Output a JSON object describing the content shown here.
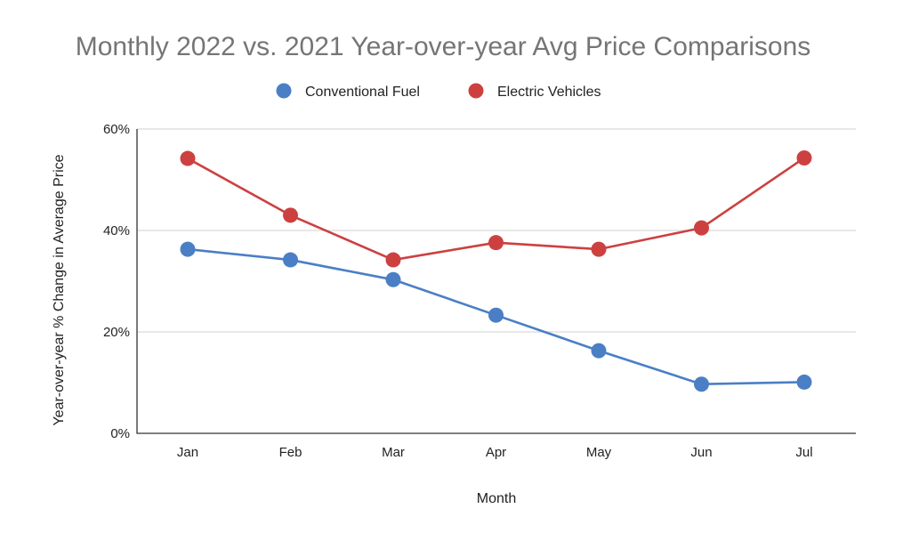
{
  "chart_data": {
    "type": "line",
    "title": "Monthly 2022 vs. 2021 Year-over-year Avg Price Comparisons",
    "xlabel": "Month",
    "ylabel": "Year-over-year % Change in Average Price",
    "categories": [
      "Jan",
      "Feb",
      "Mar",
      "Apr",
      "May",
      "Jun",
      "Jul"
    ],
    "ylim": [
      0,
      60
    ],
    "yticks": [
      0,
      20,
      40,
      60
    ],
    "ytick_labels": [
      "0%",
      "20%",
      "40%",
      "60%"
    ],
    "grid": true,
    "legend_position": "top-center",
    "series": [
      {
        "name": "Conventional Fuel",
        "color": "#4a7fc5",
        "values": [
          36.3,
          34.2,
          30.3,
          23.3,
          16.3,
          9.7,
          10.1
        ]
      },
      {
        "name": "Electric Vehicles",
        "color": "#cc4140",
        "values": [
          54.2,
          43.0,
          34.2,
          37.6,
          36.3,
          40.5,
          54.3
        ]
      }
    ]
  }
}
